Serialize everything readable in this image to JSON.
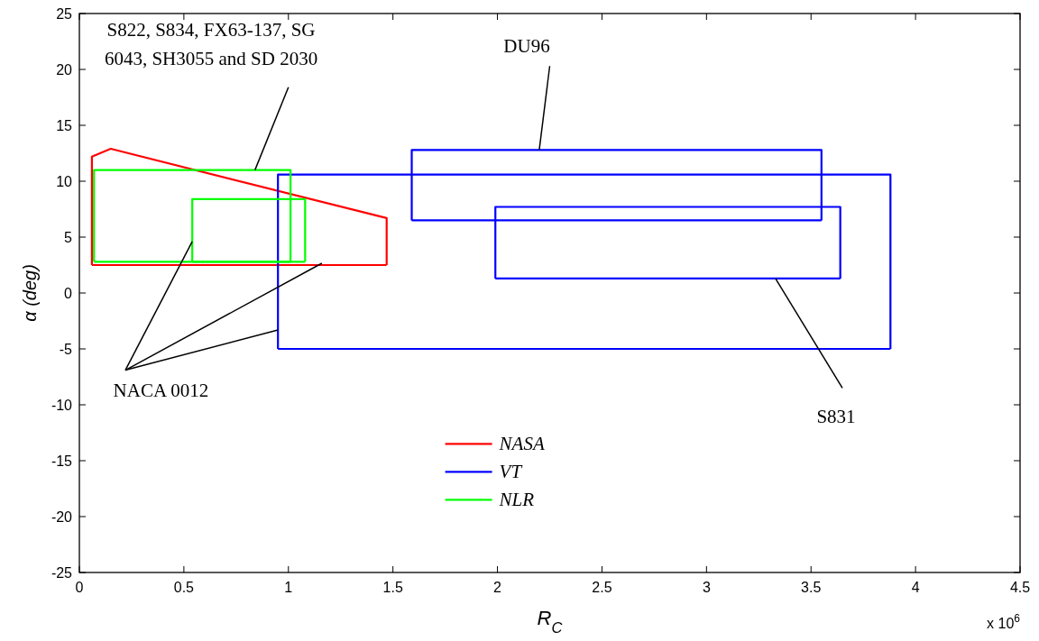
{
  "chart_data": {
    "type": "line",
    "xlabel": "R$_{C}$",
    "ylabel": "α  (deg)",
    "xlim": [
      0,
      4.5
    ],
    "xticks": [
      0,
      0.5,
      1,
      1.5,
      2,
      2.5,
      3,
      3.5,
      4,
      4.5
    ],
    "ylim": [
      -25,
      25
    ],
    "yticks": [
      -25,
      -20,
      -15,
      -10,
      -5,
      0,
      5,
      10,
      15,
      20,
      25
    ],
    "series": [
      {
        "name": "NASA",
        "color": "#ff0000",
        "x": [
          0.06,
          0.06,
          0.15,
          1.47,
          1.47
        ],
        "values": [
          2.5,
          12.2,
          12.9,
          6.7,
          2.5
        ]
      },
      {
        "color": "#ff0000",
        "x": [
          0.06,
          1.47
        ],
        "values": [
          2.5,
          2.5
        ]
      },
      {
        "name": "VT",
        "color": "#0000ff",
        "x": [
          0.95,
          0.95,
          3.88,
          3.88
        ],
        "values": [
          -5,
          10.6,
          10.6,
          -5
        ]
      },
      {
        "color": "#0000ff",
        "x": [
          0.95,
          3.88
        ],
        "values": [
          -5,
          -5
        ]
      },
      {
        "color": "#0000ff",
        "x": [
          1.59,
          1.59,
          3.55,
          3.55
        ],
        "values": [
          6.5,
          12.8,
          12.8,
          6.5
        ]
      },
      {
        "color": "#0000ff",
        "x": [
          1.59,
          3.55
        ],
        "values": [
          6.5,
          6.5
        ]
      },
      {
        "color": "#0000ff",
        "x": [
          1.99,
          1.99,
          3.64,
          3.64
        ],
        "values": [
          1.3,
          7.7,
          7.7,
          1.3
        ]
      },
      {
        "color": "#0000ff",
        "x": [
          1.99,
          3.64
        ],
        "values": [
          1.3,
          1.3
        ]
      },
      {
        "name": "NLR",
        "color": "#00ff00",
        "x": [
          0.07,
          0.07,
          1.01,
          1.01
        ],
        "values": [
          2.8,
          11,
          11,
          2.8
        ]
      },
      {
        "color": "#00ff00",
        "x": [
          0.07,
          1.01
        ],
        "values": [
          2.8,
          2.8
        ]
      },
      {
        "color": "#00ff00",
        "x": [
          0.54,
          0.54,
          1.08,
          1.08
        ],
        "values": [
          2.8,
          8.4,
          8.4,
          2.8
        ]
      },
      {
        "color": "#00ff00",
        "x": [
          0.54,
          1.08
        ],
        "values": [
          2.8,
          2.8
        ]
      }
    ],
    "annotations": [
      {
        "text": "S822, S834, FX63-137, SG 6043, SH3055 and SD 2030",
        "x": 0.84,
        "y": 11
      },
      {
        "text": "DU96",
        "x": 2.2,
        "y": 12.8
      },
      {
        "text": "S831",
        "x": 3.33,
        "y": 1.3
      },
      {
        "text": "NACA 0012",
        "x": 0.54,
        "y": 4.6
      },
      "x 10$^{6}$"
    ],
    "legend": "bottom",
    "grid": false,
    "line_style": "solid",
    "marker": "none"
  }
}
